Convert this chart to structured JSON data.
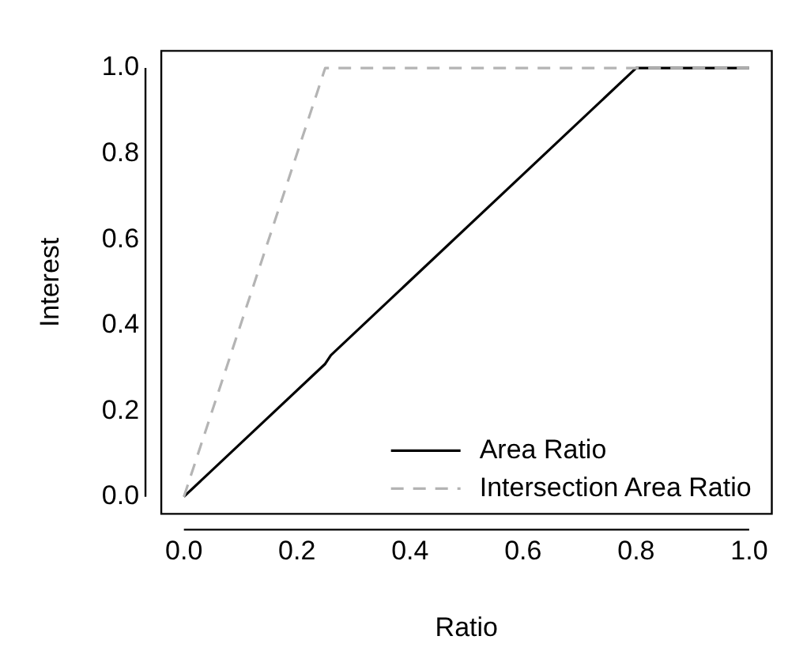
{
  "chart_data": {
    "type": "line",
    "xlabel": "Ratio",
    "ylabel": "Interest",
    "xlim": [
      -0.04,
      1.04
    ],
    "ylim": [
      -0.04,
      1.04
    ],
    "xticks": [
      {
        "value": 0,
        "label": "0.0"
      },
      0.2,
      0.4,
      0.6,
      0.8,
      {
        "value": 1,
        "label": "1.0"
      }
    ],
    "yticks": [
      {
        "value": 0,
        "label": "0.0"
      },
      0.2,
      0.4,
      0.6,
      0.8,
      {
        "value": 1,
        "label": "1.0"
      }
    ],
    "series": [
      {
        "name": "Area Ratio",
        "color": "#000000",
        "line_style": "solid",
        "x": [
          0,
          0.25,
          0.26,
          0.8,
          1
        ],
        "values": [
          0,
          0.31,
          0.33,
          1,
          1
        ]
      },
      {
        "name": "Intersection Area Ratio",
        "color": "#b4b4b4",
        "line_style": "dashed",
        "x": [
          0,
          0.25,
          1
        ],
        "values": [
          0,
          1,
          1
        ]
      }
    ],
    "grid": false,
    "legend": "bottom right",
    "marker": "none"
  }
}
